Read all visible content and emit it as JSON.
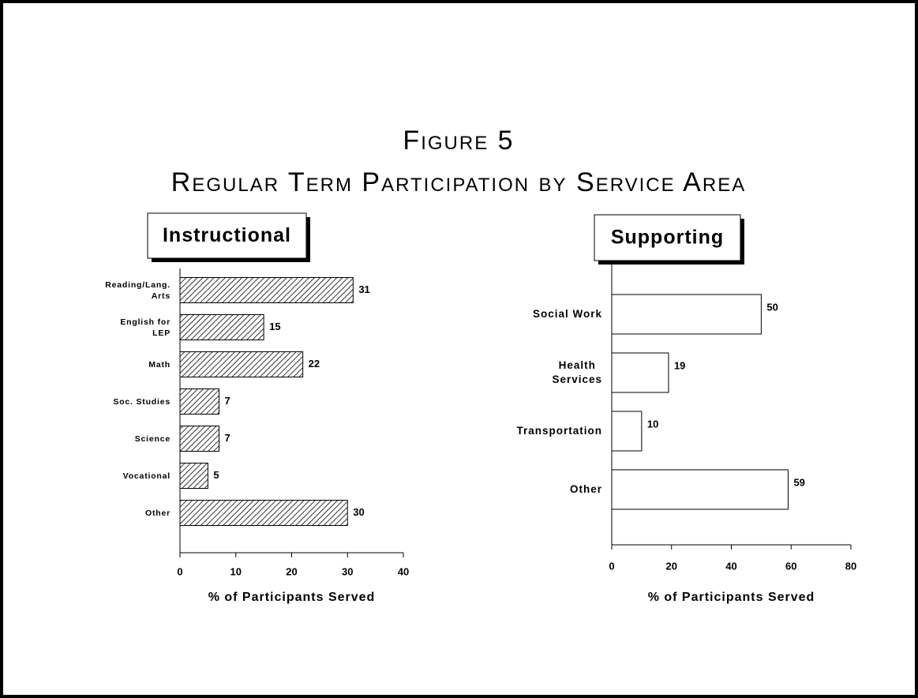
{
  "title": "Figure 5",
  "subtitle": "Regular Term Participation by Service Area",
  "chart_data": [
    {
      "type": "bar",
      "orientation": "horizontal",
      "title": "Instructional",
      "categories": [
        "Reading/Lang.\nArts",
        "English for\nLEP",
        "Math",
        "Soc. Studies",
        "Science",
        "Vocational",
        "Other"
      ],
      "values": [
        31,
        15,
        22,
        7,
        7,
        5,
        30
      ],
      "color": "#000000",
      "fill": "hatch",
      "xlim": [
        0,
        40
      ],
      "xticks": [
        0,
        10,
        20,
        30,
        40
      ],
      "xlabel": "% of Participants Served"
    },
    {
      "type": "bar",
      "orientation": "horizontal",
      "title": "Supporting",
      "categories": [
        "Social Work",
        "Health\nServices",
        "Transportation",
        "Other"
      ],
      "values": [
        50,
        19,
        10,
        59
      ],
      "color": "#000000",
      "fill": "none",
      "xlim": [
        0,
        80
      ],
      "xticks": [
        0,
        20,
        40,
        60,
        80
      ],
      "xlabel": "% of Participants Served"
    }
  ]
}
